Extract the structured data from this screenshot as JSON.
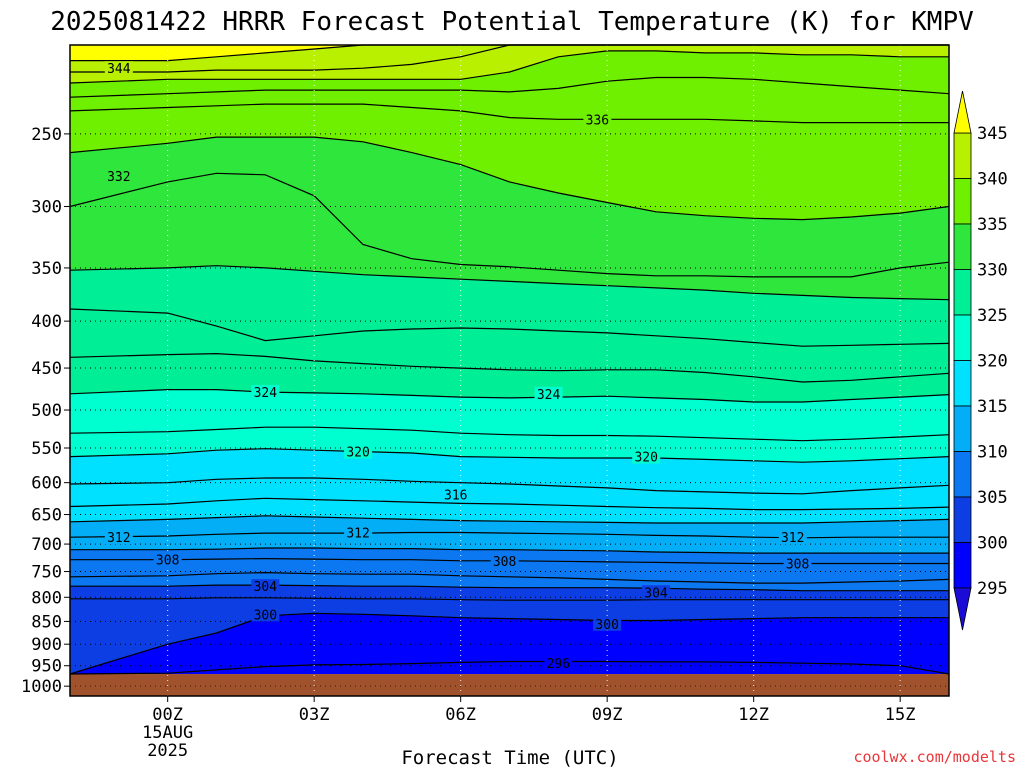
{
  "page": {
    "credit": "coolwx.com/modelts"
  },
  "chart_data": {
    "type": "contour",
    "title": "2025081422 HRRR Forecast Potential Temperature (K) for KMPV",
    "xlabel": "Forecast Time (UTC)",
    "ylabel": "",
    "x_ticks": [
      "00Z",
      "03Z",
      "06Z",
      "09Z",
      "12Z",
      "15Z"
    ],
    "x_hours": [
      0,
      3,
      6,
      9,
      12,
      15
    ],
    "x_date_sublabels": [
      "15AUG",
      "2025"
    ],
    "xlim_hours": [
      -2,
      16
    ],
    "y_ticks": [
      250,
      300,
      350,
      400,
      450,
      500,
      550,
      600,
      650,
      700,
      750,
      800,
      850,
      900,
      950,
      1000
    ],
    "ylim_hPa": [
      1025,
      200
    ],
    "surface_pressure_hPa": 970,
    "grid": "dotted",
    "colorbar": {
      "levels": [
        295,
        300,
        305,
        310,
        315,
        320,
        325,
        330,
        335,
        340,
        345
      ],
      "labels": [
        "295",
        "300",
        "305",
        "310",
        "315",
        "320",
        "325",
        "330",
        "335",
        "340",
        "345"
      ],
      "colors": [
        "#1a0cd6",
        "#0000ff",
        "#0d3ee4",
        "#0b78f1",
        "#04aef7",
        "#00e0ff",
        "#00ffd0",
        "#00ee95",
        "#2ee63c",
        "#6ef000",
        "#b8f000",
        "#ffff00"
      ],
      "extend": "both"
    },
    "ground_color": "#a0522d",
    "contour_color": "#000000",
    "contour_interval_K": 2,
    "contour_labels": [
      {
        "text": "344",
        "hour": -1.0,
        "hPa": 212
      },
      {
        "text": "336",
        "hour": 8.8,
        "hPa": 241
      },
      {
        "text": "332",
        "hour": -1.0,
        "hPa": 278
      },
      {
        "text": "324",
        "hour": 2.0,
        "hPa": 478
      },
      {
        "text": "324",
        "hour": 7.8,
        "hPa": 480
      },
      {
        "text": "320",
        "hour": 3.9,
        "hPa": 555
      },
      {
        "text": "320",
        "hour": 9.8,
        "hPa": 562
      },
      {
        "text": "316",
        "hour": 5.9,
        "hPa": 618
      },
      {
        "text": "312",
        "hour": -1.0,
        "hPa": 688
      },
      {
        "text": "312",
        "hour": 3.9,
        "hPa": 680
      },
      {
        "text": "312",
        "hour": 12.8,
        "hPa": 688
      },
      {
        "text": "308",
        "hour": 0.0,
        "hPa": 728
      },
      {
        "text": "308",
        "hour": 6.9,
        "hPa": 730
      },
      {
        "text": "308",
        "hour": 12.9,
        "hPa": 735
      },
      {
        "text": "304",
        "hour": 2.0,
        "hPa": 778
      },
      {
        "text": "304",
        "hour": 10.0,
        "hPa": 790
      },
      {
        "text": "300",
        "hour": 2.0,
        "hPa": 835
      },
      {
        "text": "300",
        "hour": 9.0,
        "hPa": 855
      },
      {
        "text": "296",
        "hour": 8.0,
        "hPa": 943
      }
    ],
    "isentropes_hPa": {
      "hours": [
        -2,
        0,
        1,
        2,
        3,
        4,
        5,
        6,
        7,
        8,
        9,
        10,
        11,
        12,
        13,
        14,
        15,
        16
      ],
      "lines": [
        {
          "theta": 298,
          "values": [
            970,
            968,
            960,
            952,
            948,
            947,
            945,
            942,
            940,
            940,
            940,
            941,
            941,
            942,
            944,
            946,
            950,
            970
          ]
        },
        {
          "theta": 300,
          "values": [
            970,
            900,
            875,
            838,
            833,
            835,
            838,
            842,
            844,
            846,
            848,
            848,
            846,
            844,
            842,
            842,
            842,
            842
          ]
        },
        {
          "theta": 302,
          "values": [
            803,
            803,
            801,
            801,
            802,
            803,
            803,
            805,
            806,
            806,
            806,
            805,
            805,
            805,
            805,
            805,
            805,
            805
          ]
        },
        {
          "theta": 304,
          "values": [
            778,
            778,
            776,
            776,
            777,
            778,
            778,
            780,
            781,
            781,
            781,
            782,
            784,
            785,
            787,
            787,
            787,
            787
          ]
        },
        {
          "theta": 306,
          "values": [
            760,
            758,
            754,
            752,
            754,
            755,
            755,
            758,
            760,
            762,
            765,
            768,
            770,
            772,
            772,
            770,
            768,
            765
          ]
        },
        {
          "theta": 308,
          "values": [
            728,
            728,
            727,
            726,
            727,
            728,
            728,
            730,
            730,
            731,
            732,
            733,
            734,
            735,
            735,
            735,
            735,
            735
          ]
        },
        {
          "theta": 310,
          "values": [
            710,
            710,
            709,
            707,
            707,
            708,
            708,
            710,
            710,
            711,
            712,
            714,
            715,
            716,
            716,
            716,
            716,
            716
          ]
        },
        {
          "theta": 312,
          "values": [
            688,
            686,
            683,
            681,
            681,
            681,
            680,
            680,
            681,
            682,
            683,
            685,
            686,
            688,
            689,
            688,
            688,
            688
          ]
        },
        {
          "theta": 314,
          "values": [
            662,
            658,
            655,
            652,
            654,
            656,
            658,
            660,
            661,
            662,
            663,
            664,
            664,
            664,
            664,
            662,
            660,
            658
          ]
        },
        {
          "theta": 316,
          "values": [
            637,
            633,
            628,
            624,
            626,
            628,
            630,
            632,
            633,
            635,
            637,
            639,
            640,
            642,
            642,
            641,
            640,
            638
          ]
        },
        {
          "theta": 318,
          "values": [
            602,
            600,
            595,
            593,
            593,
            595,
            598,
            600,
            602,
            605,
            608,
            612,
            614,
            616,
            617,
            612,
            608,
            604
          ]
        },
        {
          "theta": 320,
          "values": [
            562,
            558,
            553,
            551,
            553,
            555,
            557,
            562,
            563,
            564,
            564,
            564,
            566,
            568,
            570,
            568,
            565,
            562
          ]
        },
        {
          "theta": 322,
          "values": [
            530,
            528,
            525,
            522,
            522,
            524,
            526,
            530,
            532,
            533,
            533,
            534,
            536,
            538,
            540,
            538,
            535,
            532
          ]
        },
        {
          "theta": 324,
          "values": [
            480,
            475,
            475,
            478,
            479,
            480,
            482,
            484,
            485,
            484,
            483,
            485,
            487,
            490,
            490,
            487,
            484,
            481
          ]
        },
        {
          "theta": 326,
          "values": [
            438,
            435,
            434,
            437,
            442,
            445,
            448,
            450,
            452,
            453,
            452,
            452,
            455,
            460,
            466,
            464,
            460,
            456
          ]
        },
        {
          "theta": 328,
          "values": [
            388,
            392,
            405,
            420,
            415,
            410,
            408,
            407,
            408,
            410,
            412,
            415,
            418,
            422,
            426,
            425,
            424,
            423
          ]
        },
        {
          "theta": 330,
          "values": [
            352,
            350,
            348,
            350,
            353,
            356,
            358,
            360,
            362,
            364,
            366,
            368,
            370,
            373,
            375,
            377,
            378,
            379
          ]
        },
        {
          "theta": 332,
          "values": [
            300,
            282,
            276,
            277,
            292,
            330,
            342,
            347,
            349,
            352,
            355,
            357,
            357,
            358,
            358,
            358,
            350,
            345
          ]
        },
        {
          "theta": 334,
          "values": [
            262,
            256,
            252,
            252,
            252,
            255,
            262,
            270,
            282,
            290,
            297,
            304,
            307,
            309,
            310,
            308,
            305,
            300
          ]
        },
        {
          "theta": 336,
          "values": [
            236,
            234,
            233,
            232,
            232,
            232,
            234,
            236,
            240,
            241,
            241,
            241,
            241,
            242,
            243,
            243,
            243,
            243
          ]
        },
        {
          "theta": 338,
          "values": [
            228,
            226,
            225,
            224,
            224,
            224,
            224,
            224,
            225,
            223,
            219,
            217,
            217,
            218,
            220,
            222,
            224,
            226
          ]
        },
        {
          "theta": 340,
          "values": [
            220,
            218,
            218,
            218,
            218,
            218,
            218,
            218,
            214,
            206,
            203,
            203,
            204,
            204,
            205,
            205,
            206,
            206
          ]
        },
        {
          "theta": 342,
          "values": [
            214,
            214,
            213,
            213,
            213,
            212,
            210,
            206,
            200,
            200,
            200,
            200,
            200,
            200,
            200,
            200,
            200,
            200
          ]
        },
        {
          "theta": 344,
          "values": [
            208,
            208,
            206,
            204,
            202,
            200,
            200,
            200,
            200,
            200,
            200,
            200,
            200,
            200,
            200,
            200,
            200,
            200
          ]
        }
      ]
    }
  }
}
